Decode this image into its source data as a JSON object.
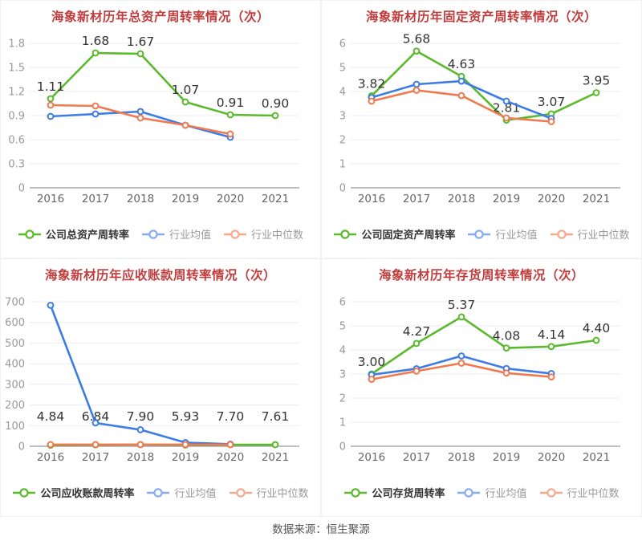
{
  "page": {
    "source_note": "数据来源：恒生聚源"
  },
  "colors": {
    "company": "#5BB92C",
    "mean": "#3D7BE5",
    "median": "#F0794F",
    "legend_mean": "#85ABF2",
    "legend_median": "#F5A98D",
    "grid": "#E8EDF5",
    "axis": "#999999",
    "tick": "#999999",
    "year": "#666666",
    "label": "#333333",
    "title": "#C03D3D",
    "legend_text": "#999999",
    "legend_primary_text": "#333333",
    "source_text": "#555555"
  },
  "chart_data": [
    {
      "type": "line",
      "title": "海象新材历年总资产周转率情况（次）",
      "x": [
        "2016",
        "2017",
        "2018",
        "2019",
        "2020",
        "2021"
      ],
      "ylim": [
        0,
        1.8
      ],
      "yticks": [
        "0",
        "0.3",
        "0.6",
        "0.9",
        "1.2",
        "1.5",
        "1.8"
      ],
      "grid": true,
      "legend_position": "bottom",
      "series": [
        {
          "role": "company",
          "name": "公司总资产周转率",
          "values": [
            1.11,
            1.68,
            1.67,
            1.07,
            0.91,
            0.9
          ],
          "labels": [
            "1.11",
            "1.68",
            "1.67",
            "1.07",
            "0.91",
            "0.90"
          ]
        },
        {
          "role": "mean",
          "name": "行业均值",
          "values": [
            0.89,
            0.92,
            0.95,
            0.78,
            0.63
          ]
        },
        {
          "role": "median",
          "name": "行业中位数",
          "values": [
            1.03,
            1.02,
            0.87,
            0.78,
            0.67
          ]
        }
      ]
    },
    {
      "type": "line",
      "title": "海象新材历年固定资产周转率情况（次）",
      "x": [
        "2016",
        "2017",
        "2018",
        "2019",
        "2020",
        "2021"
      ],
      "ylim": [
        0,
        6
      ],
      "yticks": [
        "0",
        "1",
        "2",
        "3",
        "4",
        "5",
        "6"
      ],
      "grid": true,
      "legend_position": "bottom",
      "series": [
        {
          "role": "company",
          "name": "公司固定资产周转率",
          "values": [
            3.82,
            5.68,
            4.63,
            2.81,
            3.07,
            3.95
          ],
          "labels": [
            "3.82",
            "5.68",
            "4.63",
            "2.81",
            "3.07",
            "3.95"
          ]
        },
        {
          "role": "mean",
          "name": "行业均值",
          "values": [
            3.75,
            4.3,
            4.43,
            3.6,
            2.88
          ]
        },
        {
          "role": "median",
          "name": "行业中位数",
          "values": [
            3.6,
            4.05,
            3.83,
            2.9,
            2.75
          ]
        }
      ]
    },
    {
      "type": "line",
      "title": "海象新材历年应收账款周转率情况（次）",
      "x": [
        "2016",
        "2017",
        "2018",
        "2019",
        "2020",
        "2021"
      ],
      "ylim": [
        0,
        700
      ],
      "yticks": [
        "0",
        "100",
        "200",
        "300",
        "400",
        "500",
        "600",
        "700"
      ],
      "grid": true,
      "legend_position": "bottom",
      "series": [
        {
          "role": "company",
          "name": "公司应收账款周转率",
          "values": [
            4.84,
            6.84,
            7.9,
            5.93,
            7.7,
            7.61
          ],
          "labels": [
            "4.84",
            "6.84",
            "7.90",
            "5.93",
            "7.70",
            "7.61"
          ]
        },
        {
          "role": "mean",
          "name": "行业均值",
          "values": [
            683,
            113,
            80,
            18,
            10
          ]
        },
        {
          "role": "median",
          "name": "行业中位数",
          "values": [
            8,
            8,
            8,
            8,
            8
          ]
        }
      ]
    },
    {
      "type": "line",
      "title": "海象新材历年存货周转率情况（次）",
      "x": [
        "2016",
        "2017",
        "2018",
        "2019",
        "2020",
        "2021"
      ],
      "ylim": [
        0,
        6
      ],
      "yticks": [
        "0",
        "1",
        "2",
        "3",
        "4",
        "5",
        "6"
      ],
      "grid": true,
      "legend_position": "bottom",
      "series": [
        {
          "role": "company",
          "name": "公司存货周转率",
          "values": [
            3.0,
            4.27,
            5.37,
            4.08,
            4.14,
            4.4
          ],
          "labels": [
            "3.00",
            "4.27",
            "5.37",
            "4.08",
            "4.14",
            "4.40"
          ]
        },
        {
          "role": "mean",
          "name": "行业均值",
          "values": [
            2.97,
            3.22,
            3.75,
            3.23,
            3.02
          ]
        },
        {
          "role": "median",
          "name": "行业中位数",
          "values": [
            2.78,
            3.12,
            3.45,
            3.04,
            2.88
          ]
        }
      ]
    }
  ]
}
